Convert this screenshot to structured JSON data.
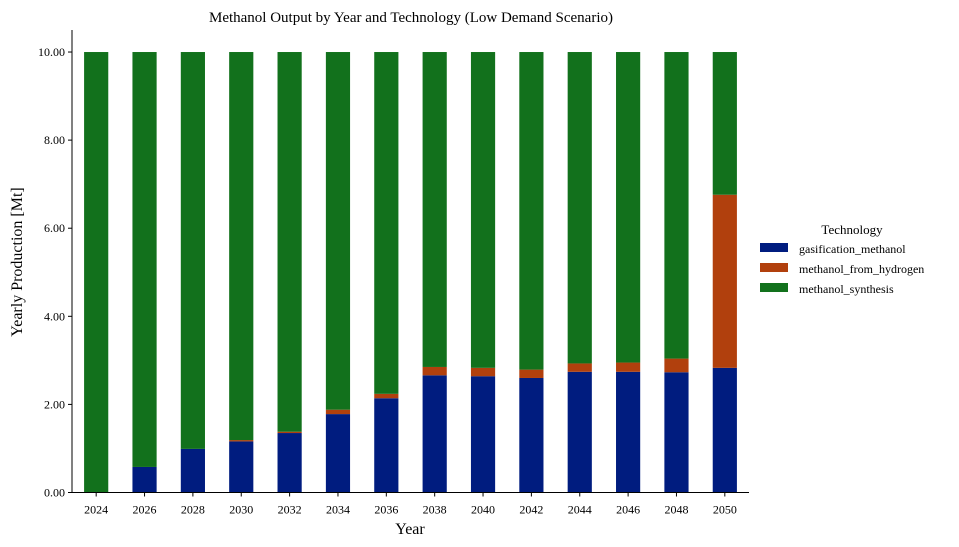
{
  "chart_data": {
    "type": "bar",
    "stacked": true,
    "title": "Methanol Output by Year and Technology (Low Demand Scenario)",
    "xlabel": "Year",
    "ylabel": "Yearly Production [Mt]",
    "ylim": [
      0,
      10.5
    ],
    "yticks": [
      "0.00",
      "2.00",
      "4.00",
      "6.00",
      "8.00",
      "10.00"
    ],
    "grid": false,
    "legend_title": "Technology",
    "legend_position": "right",
    "categories": [
      "2024",
      "2026",
      "2028",
      "2030",
      "2032",
      "2034",
      "2036",
      "2038",
      "2040",
      "2042",
      "2044",
      "2046",
      "2048",
      "2050"
    ],
    "series": [
      {
        "name": "gasification_methanol",
        "color": "#001c7f",
        "values": [
          0.0,
          0.58,
          0.99,
          1.16,
          1.35,
          1.78,
          2.14,
          2.66,
          2.64,
          2.6,
          2.74,
          2.74,
          2.73,
          2.83
        ]
      },
      {
        "name": "methanol_from_hydrogen",
        "color": "#b1400d",
        "values": [
          0.0,
          0.0,
          0.0,
          0.03,
          0.03,
          0.1,
          0.1,
          0.19,
          0.19,
          0.19,
          0.19,
          0.21,
          0.31,
          3.93
        ]
      },
      {
        "name": "methanol_synthesis",
        "color": "#12711c",
        "values": [
          10.0,
          9.42,
          9.01,
          8.81,
          8.62,
          8.12,
          7.76,
          7.15,
          7.17,
          7.21,
          7.07,
          7.05,
          6.96,
          3.24
        ]
      }
    ]
  }
}
